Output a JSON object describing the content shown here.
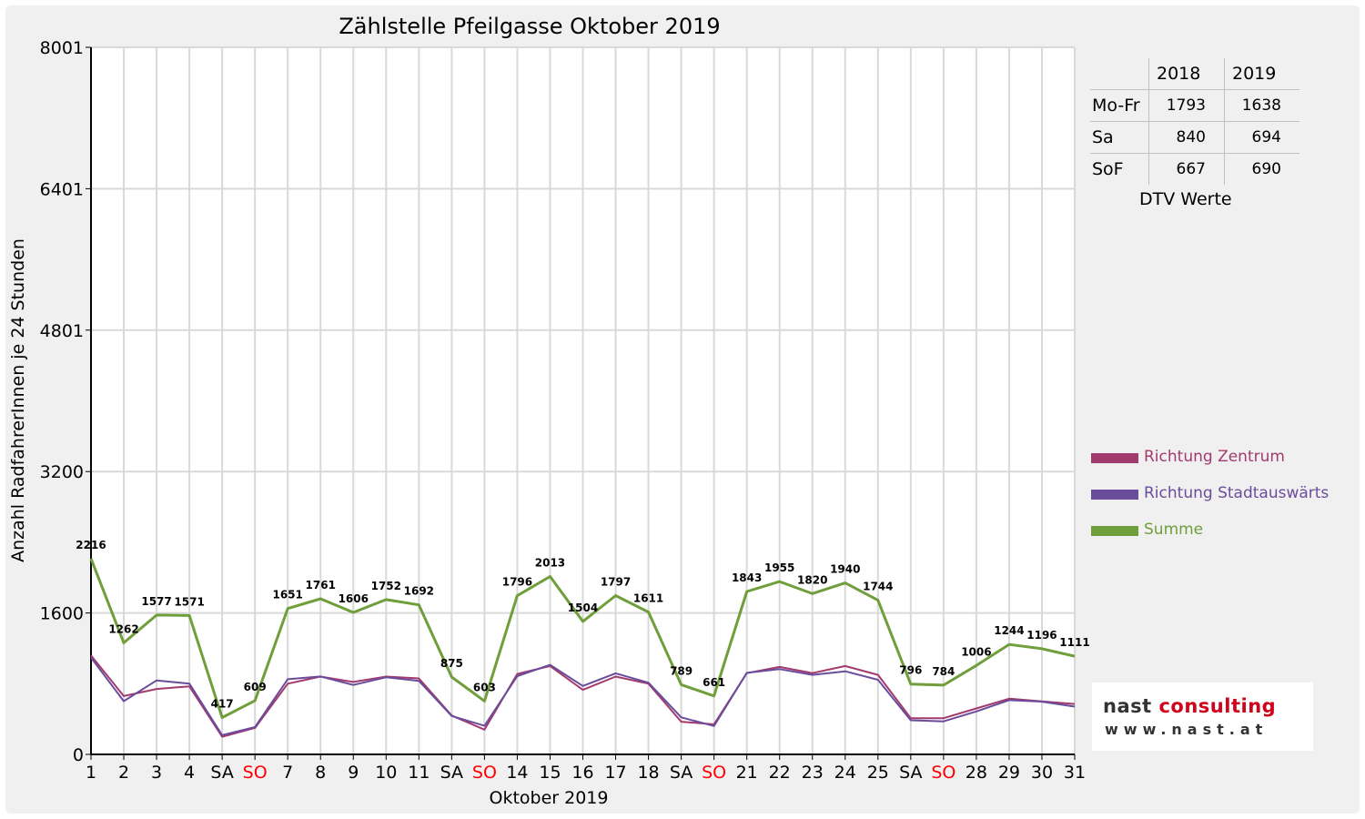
{
  "chart_data": {
    "type": "line",
    "title": "Zählstelle Pfeilgasse Oktober 2019",
    "xlabel": "Oktober 2019",
    "ylabel": "Anzahl RadfahrerInnen je 24 Stunden",
    "ylim": [
      0,
      8001
    ],
    "yticks": [
      0,
      1600,
      3200,
      4801,
      6401,
      8001
    ],
    "grid": true,
    "legend_position": "right",
    "categories": [
      "1",
      "2",
      "3",
      "4",
      "SA",
      "SO",
      "7",
      "8",
      "9",
      "10",
      "11",
      "SA",
      "SO",
      "14",
      "15",
      "16",
      "17",
      "18",
      "SA",
      "SO",
      "21",
      "22",
      "23",
      "24",
      "25",
      "SA",
      "SO",
      "28",
      "29",
      "30",
      "31"
    ],
    "category_colors": {
      "SO": "#ff0000"
    },
    "series": [
      {
        "name": "Richtung Zentrum",
        "color": "#a23a6e",
        "values": [
          1120,
          660,
          740,
          770,
          200,
          300,
          800,
          880,
          820,
          880,
          860,
          440,
          280,
          910,
          1000,
          730,
          880,
          800,
          370,
          340,
          920,
          990,
          920,
          1000,
          900,
          410,
          410,
          520,
          630,
          600,
          570
        ]
      },
      {
        "name": "Richtung Stadtauswärts",
        "color": "#6a4c9c",
        "values": [
          1096,
          602,
          837,
          801,
          217,
          309,
          851,
          881,
          786,
          872,
          832,
          435,
          323,
          886,
          1013,
          774,
          917,
          811,
          419,
          321,
          923,
          965,
          900,
          940,
          844,
          386,
          374,
          486,
          614,
          596,
          541
        ]
      },
      {
        "name": "Summe",
        "color": "#6f9e3a",
        "labeled": true,
        "values": [
          2216,
          1262,
          1577,
          1571,
          417,
          609,
          1651,
          1761,
          1606,
          1752,
          1692,
          875,
          603,
          1796,
          2013,
          1504,
          1797,
          1611,
          789,
          661,
          1843,
          1955,
          1820,
          1940,
          1744,
          796,
          784,
          1006,
          1244,
          1196,
          1111
        ]
      }
    ]
  },
  "dtv_table": {
    "headers": [
      "",
      "2018",
      "2019"
    ],
    "rows": [
      {
        "label": "Mo-Fr",
        "v2018": "1793",
        "v2019": "1638"
      },
      {
        "label": "Sa",
        "v2018": "840",
        "v2019": "694"
      },
      {
        "label": "SoF",
        "v2018": "667",
        "v2019": "690"
      }
    ],
    "caption": "DTV Werte"
  },
  "logo": {
    "main_1": "nast ",
    "main_2": "consulting",
    "sub": "www.nast.at"
  }
}
